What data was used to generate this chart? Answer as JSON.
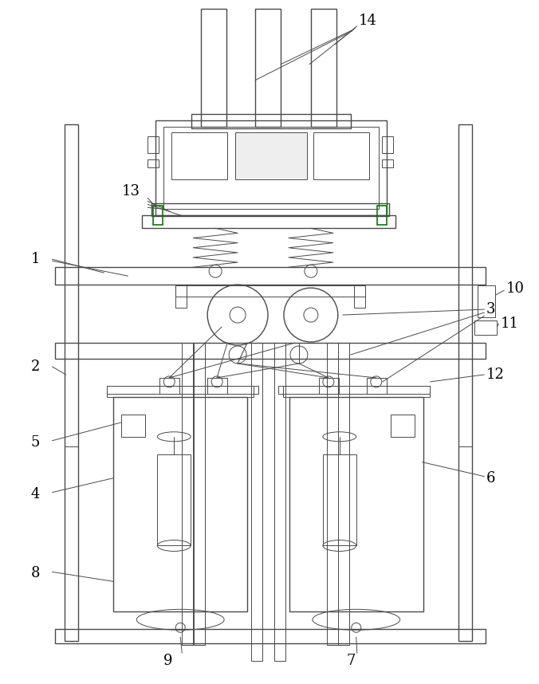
{
  "bg_color": "#ffffff",
  "line_color": "#4a4a4a",
  "green_color": "#008000",
  "label_color": "#000000",
  "fig_width": 6.76,
  "fig_height": 8.58
}
